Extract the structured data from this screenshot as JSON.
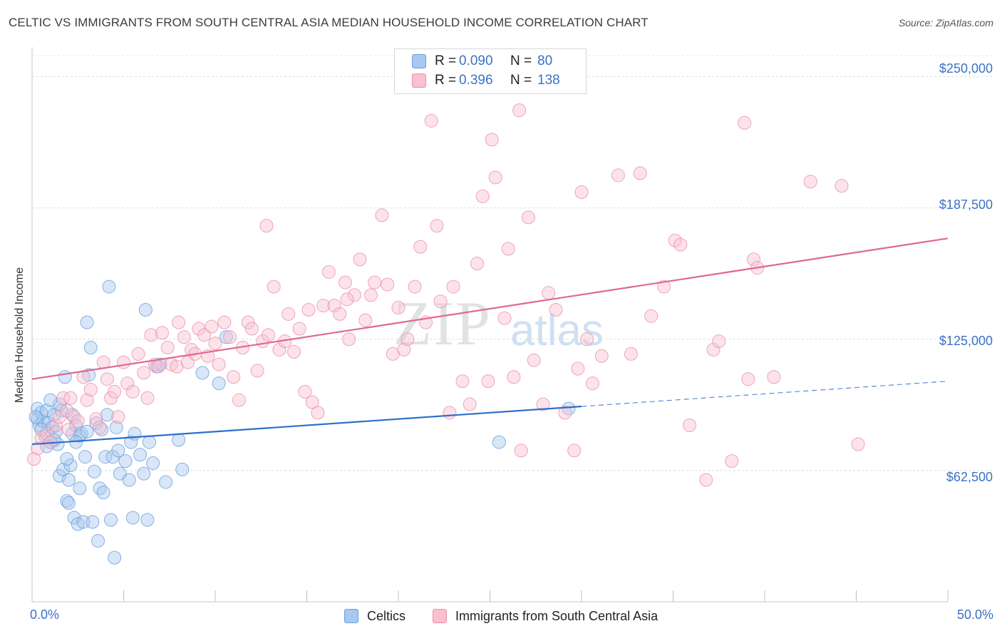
{
  "header": {
    "title": "CELTIC VS IMMIGRANTS FROM SOUTH CENTRAL ASIA MEDIAN HOUSEHOLD INCOME CORRELATION CHART",
    "source": "Source: ZipAtlas.com"
  },
  "watermark": {
    "zip": "ZIP",
    "atlas": "atlas"
  },
  "legend_top": {
    "rows": [
      {
        "r_label": "R =",
        "r_value": "0.090",
        "n_label": "N =",
        "n_value": "80",
        "color": "#a8c8f0",
        "border": "#6a9fdc"
      },
      {
        "r_label": "R =",
        "r_value": "0.396",
        "n_label": "N =",
        "n_value": "138",
        "color": "#f8c0d0",
        "border": "#e890aa"
      }
    ]
  },
  "legend_bottom": {
    "items": [
      {
        "label": "Celtics",
        "color": "#a8c8f0",
        "border": "#6a9fdc"
      },
      {
        "label": "Immigrants from South Central Asia",
        "color": "#f8c0d0",
        "border": "#e890aa"
      }
    ]
  },
  "axes": {
    "x_min_label": "0.0%",
    "x_max_label": "50.0%",
    "y_label": "Median Household Income",
    "y_ticks": [
      "$250,000",
      "$187,500",
      "$125,000",
      "$62,500"
    ]
  },
  "chart_data": {
    "type": "scatter",
    "title": "CELTIC VS IMMIGRANTS FROM SOUTH CENTRAL ASIA MEDIAN HOUSEHOLD INCOME CORRELATION CHART",
    "xlabel": "",
    "ylabel": "Median Household Income",
    "xlim": [
      0,
      50
    ],
    "ylim": [
      0,
      260000
    ],
    "y_tick_values": [
      62500,
      125000,
      187500,
      250000
    ],
    "x_tick_values": [
      0,
      5,
      10,
      15,
      20,
      25,
      30,
      35,
      40,
      45,
      50
    ],
    "series": [
      {
        "name": "Celtics",
        "color": "#6a9fdc",
        "fill": "#a8c8f0",
        "trend": {
          "x0": 0,
          "y0": 75000,
          "x1": 30,
          "y1": 93000,
          "dashed_to_x": 50,
          "dashed_to_y": 105000,
          "color": "#2e6fca"
        },
        "points": [
          [
            0.3,
            92000
          ],
          [
            0.3,
            87000
          ],
          [
            0.4,
            84000
          ],
          [
            0.5,
            90000
          ],
          [
            0.6,
            86000
          ],
          [
            0.7,
            79000
          ],
          [
            0.8,
            91000
          ],
          [
            0.9,
            85000
          ],
          [
            1.0,
            76000
          ],
          [
            1.1,
            83000
          ],
          [
            1.2,
            89000
          ],
          [
            1.3,
            81000
          ],
          [
            1.4,
            75000
          ],
          [
            1.5,
            60000
          ],
          [
            1.6,
            91000
          ],
          [
            1.7,
            63000
          ],
          [
            1.8,
            107000
          ],
          [
            1.9,
            48000
          ],
          [
            2.0,
            58000
          ],
          [
            2.1,
            65000
          ],
          [
            2.2,
            80000
          ],
          [
            2.3,
            40000
          ],
          [
            2.4,
            84000
          ],
          [
            2.5,
            37000
          ],
          [
            2.6,
            79000
          ],
          [
            2.7,
            80000
          ],
          [
            2.8,
            38000
          ],
          [
            2.9,
            69000
          ],
          [
            3.0,
            133000
          ],
          [
            3.1,
            108000
          ],
          [
            3.2,
            121000
          ],
          [
            3.3,
            38000
          ],
          [
            3.4,
            62000
          ],
          [
            3.5,
            85000
          ],
          [
            3.6,
            29000
          ],
          [
            3.7,
            54000
          ],
          [
            3.8,
            82000
          ],
          [
            3.9,
            52000
          ],
          [
            4.0,
            69000
          ],
          [
            4.1,
            89000
          ],
          [
            4.2,
            150000
          ],
          [
            4.3,
            39000
          ],
          [
            4.4,
            69000
          ],
          [
            4.5,
            21000
          ],
          [
            4.6,
            83000
          ],
          [
            4.8,
            61000
          ],
          [
            5.1,
            67000
          ],
          [
            5.3,
            58000
          ],
          [
            5.4,
            76000
          ],
          [
            5.5,
            40000
          ],
          [
            5.6,
            80000
          ],
          [
            5.9,
            70000
          ],
          [
            6.1,
            61000
          ],
          [
            6.2,
            139000
          ],
          [
            6.3,
            39000
          ],
          [
            6.4,
            76000
          ],
          [
            6.6,
            66000
          ],
          [
            6.8,
            112000
          ],
          [
            7.0,
            113000
          ],
          [
            7.3,
            57000
          ],
          [
            8.0,
            77000
          ],
          [
            8.2,
            63000
          ],
          [
            9.3,
            109000
          ],
          [
            10.2,
            104000
          ],
          [
            10.6,
            126000
          ],
          [
            25.5,
            76000
          ],
          [
            29.3,
            92000
          ],
          [
            0.2,
            88000
          ],
          [
            0.5,
            82000
          ],
          [
            1.2,
            77000
          ],
          [
            2.0,
            47000
          ],
          [
            2.6,
            54000
          ],
          [
            1.5,
            94000
          ],
          [
            1.0,
            96000
          ],
          [
            2.2,
            89000
          ],
          [
            3.0,
            81000
          ],
          [
            0.8,
            74000
          ],
          [
            1.9,
            68000
          ],
          [
            4.7,
            72000
          ],
          [
            2.4,
            76000
          ]
        ]
      },
      {
        "name": "Immigrants from South Central Asia",
        "color": "#e890aa",
        "fill": "#f8c0d0",
        "trend": {
          "x0": 0,
          "y0": 106000,
          "x1": 50,
          "y1": 173000,
          "color": "#e06890"
        },
        "points": [
          [
            0.1,
            68000
          ],
          [
            0.3,
            73000
          ],
          [
            0.5,
            78000
          ],
          [
            0.8,
            80000
          ],
          [
            1.0,
            76000
          ],
          [
            1.3,
            84000
          ],
          [
            1.5,
            88000
          ],
          [
            1.7,
            97000
          ],
          [
            1.9,
            91000
          ],
          [
            2.0,
            82000
          ],
          [
            2.1,
            97000
          ],
          [
            2.3,
            88000
          ],
          [
            2.5,
            86000
          ],
          [
            2.8,
            107000
          ],
          [
            3.0,
            96000
          ],
          [
            3.2,
            101000
          ],
          [
            3.5,
            87000
          ],
          [
            3.7,
            83000
          ],
          [
            3.9,
            114000
          ],
          [
            4.1,
            106000
          ],
          [
            4.3,
            97000
          ],
          [
            4.5,
            100000
          ],
          [
            4.7,
            88000
          ],
          [
            5.0,
            114000
          ],
          [
            5.2,
            104000
          ],
          [
            5.5,
            100000
          ],
          [
            5.8,
            118000
          ],
          [
            6.1,
            109000
          ],
          [
            6.3,
            97000
          ],
          [
            6.5,
            127000
          ],
          [
            6.7,
            113000
          ],
          [
            6.9,
            112000
          ],
          [
            7.1,
            128000
          ],
          [
            7.4,
            121000
          ],
          [
            7.6,
            113000
          ],
          [
            7.9,
            112000
          ],
          [
            8.0,
            133000
          ],
          [
            8.3,
            126000
          ],
          [
            8.5,
            114000
          ],
          [
            8.7,
            120000
          ],
          [
            8.9,
            118000
          ],
          [
            9.1,
            130000
          ],
          [
            9.4,
            127000
          ],
          [
            9.6,
            117000
          ],
          [
            9.8,
            131000
          ],
          [
            10.0,
            123000
          ],
          [
            10.2,
            113000
          ],
          [
            10.5,
            133000
          ],
          [
            10.8,
            126000
          ],
          [
            11.0,
            107000
          ],
          [
            11.3,
            96000
          ],
          [
            11.5,
            121000
          ],
          [
            11.8,
            133000
          ],
          [
            12.0,
            130000
          ],
          [
            12.3,
            110000
          ],
          [
            12.6,
            124000
          ],
          [
            12.9,
            127000
          ],
          [
            13.2,
            150000
          ],
          [
            13.5,
            120000
          ],
          [
            13.8,
            124000
          ],
          [
            14.0,
            137000
          ],
          [
            14.3,
            119000
          ],
          [
            14.6,
            130000
          ],
          [
            14.9,
            100000
          ],
          [
            15.1,
            139000
          ],
          [
            15.3,
            95000
          ],
          [
            15.6,
            90000
          ],
          [
            15.9,
            141000
          ],
          [
            16.2,
            157000
          ],
          [
            16.5,
            141000
          ],
          [
            16.8,
            137000
          ],
          [
            17.1,
            152000
          ],
          [
            17.3,
            125000
          ],
          [
            17.6,
            146000
          ],
          [
            17.9,
            163000
          ],
          [
            18.2,
            134000
          ],
          [
            18.5,
            146000
          ],
          [
            18.7,
            152000
          ],
          [
            19.1,
            184000
          ],
          [
            19.4,
            151000
          ],
          [
            19.7,
            118000
          ],
          [
            20.0,
            140000
          ],
          [
            20.3,
            120000
          ],
          [
            20.5,
            125000
          ],
          [
            20.9,
            150000
          ],
          [
            21.2,
            169000
          ],
          [
            21.5,
            133000
          ],
          [
            21.8,
            229000
          ],
          [
            22.1,
            179000
          ],
          [
            22.3,
            143000
          ],
          [
            22.8,
            90000
          ],
          [
            23.0,
            150000
          ],
          [
            23.5,
            105000
          ],
          [
            23.9,
            94000
          ],
          [
            24.3,
            161000
          ],
          [
            24.6,
            193000
          ],
          [
            24.9,
            105000
          ],
          [
            25.3,
            202000
          ],
          [
            25.8,
            135000
          ],
          [
            26.0,
            168000
          ],
          [
            26.3,
            107000
          ],
          [
            26.7,
            72000
          ],
          [
            27.1,
            183000
          ],
          [
            27.4,
            115000
          ],
          [
            27.9,
            94000
          ],
          [
            28.2,
            147000
          ],
          [
            28.6,
            139000
          ],
          [
            29.1,
            90000
          ],
          [
            29.6,
            72000
          ],
          [
            30.0,
            195000
          ],
          [
            30.3,
            125000
          ],
          [
            30.6,
            104000
          ],
          [
            31.1,
            117000
          ],
          [
            32.0,
            203000
          ],
          [
            32.7,
            118000
          ],
          [
            33.8,
            136000
          ],
          [
            34.5,
            150000
          ],
          [
            35.1,
            172000
          ],
          [
            35.4,
            170000
          ],
          [
            35.9,
            84000
          ],
          [
            36.8,
            58000
          ],
          [
            37.2,
            120000
          ],
          [
            37.5,
            124000
          ],
          [
            38.9,
            228000
          ],
          [
            38.2,
            67000
          ],
          [
            39.1,
            106000
          ],
          [
            39.4,
            163000
          ],
          [
            39.6,
            159000
          ],
          [
            40.5,
            107000
          ],
          [
            42.5,
            200000
          ],
          [
            44.2,
            198000
          ],
          [
            45.1,
            75000
          ],
          [
            26.6,
            234000
          ],
          [
            25.1,
            220000
          ],
          [
            29.8,
            111000
          ],
          [
            33.2,
            204000
          ],
          [
            12.8,
            179000
          ],
          [
            17.2,
            144000
          ]
        ]
      }
    ]
  }
}
